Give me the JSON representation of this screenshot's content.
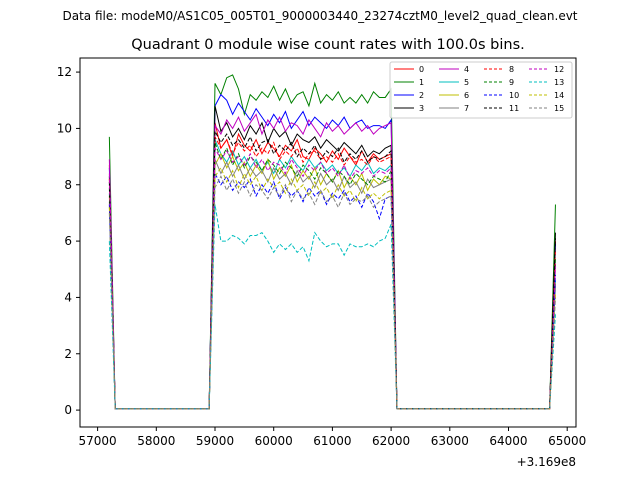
{
  "figure": {
    "supertitle": "Data file: modeM0/AS1C05_005T01_9000003440_23274cztM0_level2_quad_clean.evt"
  },
  "chart_data": {
    "type": "line",
    "title": "Quadrant 0 module wise count rates with 100.0s bins.",
    "xlabel": "",
    "ylabel": "",
    "x_offset_label": "+3.169e8",
    "xlim": [
      56700,
      65150
    ],
    "ylim": [
      -0.6,
      12.5
    ],
    "xticks": [
      57000,
      58000,
      59000,
      60000,
      61000,
      62000,
      63000,
      64000,
      65000
    ],
    "yticks": [
      0,
      2,
      4,
      6,
      8,
      10,
      12
    ],
    "legend": {
      "placement": "top-right",
      "columns": 4
    },
    "grid": false,
    "segments": [
      [
        57200,
        57300
      ],
      [
        58800,
        62200
      ],
      [
        64700,
        64800
      ]
    ],
    "series": [
      {
        "name": "0",
        "color": "#ff0000",
        "dash": "solid",
        "values": [
          8.7,
          0.05,
          0.05,
          0.05,
          10.2,
          9.3,
          9.6,
          9.0,
          9.8,
          9.4,
          9.2,
          9.6,
          9.1,
          9.5,
          9.3,
          9.0,
          9.4,
          9.2,
          9.6,
          9.0,
          8.9,
          9.3,
          9.1,
          8.8,
          9.2,
          8.9,
          9.3,
          9.0,
          8.7,
          9.2,
          8.8,
          9.1,
          8.9,
          9.0,
          9.1,
          0.05,
          0.05,
          0.05,
          6.0
        ]
      },
      {
        "name": "1",
        "color": "#008000",
        "dash": "solid",
        "values": [
          9.7,
          0.05,
          0.05,
          0.05,
          11.6,
          11.2,
          11.8,
          11.9,
          11.4,
          10.5,
          11.2,
          11.0,
          11.3,
          11.1,
          11.5,
          11.0,
          11.4,
          10.9,
          11.2,
          11.3,
          10.8,
          11.6,
          10.9,
          11.2,
          11.0,
          11.3,
          10.9,
          11.1,
          10.9,
          11.2,
          10.9,
          11.3,
          11.1,
          11.1,
          11.4,
          0.05,
          0.05,
          0.05,
          7.3
        ]
      },
      {
        "name": "2",
        "color": "#0000ff",
        "dash": "solid",
        "values": [
          8.6,
          0.05,
          0.05,
          0.05,
          10.8,
          11.2,
          11.0,
          10.5,
          10.9,
          10.6,
          10.3,
          10.7,
          10.4,
          10.1,
          10.5,
          10.2,
          10.6,
          10.0,
          10.3,
          10.6,
          10.1,
          10.4,
          10.2,
          10.0,
          10.3,
          10.1,
          10.4,
          10.0,
          10.2,
          10.3,
          10.0,
          10.1,
          10.1,
          10.0,
          10.3,
          0.05,
          0.05,
          0.05,
          5.9
        ]
      },
      {
        "name": "3",
        "color": "#000000",
        "dash": "solid",
        "values": [
          8.3,
          0.05,
          0.05,
          0.05,
          10.8,
          9.9,
          10.2,
          9.7,
          10.0,
          9.6,
          10.1,
          9.8,
          10.2,
          9.5,
          10.0,
          9.7,
          9.9,
          9.4,
          9.8,
          9.6,
          9.5,
          9.7,
          9.3,
          9.6,
          9.4,
          9.2,
          9.5,
          9.3,
          9.1,
          9.4,
          9.0,
          9.2,
          9.1,
          9.3,
          9.4,
          0.05,
          0.05,
          0.05,
          6.3
        ]
      },
      {
        "name": "4",
        "color": "#bf00bf",
        "dash": "solid",
        "values": [
          8.9,
          0.05,
          0.05,
          0.05,
          10.1,
          9.8,
          10.3,
          10.0,
          10.4,
          9.9,
          10.2,
          10.5,
          9.8,
          10.3,
          10.0,
          10.4,
          9.9,
          10.2,
          10.1,
          9.8,
          10.3,
          10.0,
          9.7,
          10.2,
          9.9,
          10.1,
          9.8,
          10.0,
          10.2,
          9.9,
          10.1,
          9.8,
          10.0,
          10.1,
          10.2,
          0.05,
          0.05,
          0.05,
          5.2
        ]
      },
      {
        "name": "5",
        "color": "#00bfbf",
        "dash": "solid",
        "values": [
          7.7,
          0.05,
          0.05,
          0.05,
          9.6,
          9.1,
          8.8,
          9.2,
          8.7,
          9.0,
          8.6,
          8.9,
          8.5,
          8.8,
          8.4,
          8.9,
          8.6,
          9.0,
          8.7,
          8.5,
          8.9,
          8.6,
          8.8,
          8.5,
          8.7,
          8.4,
          8.6,
          8.3,
          8.7,
          8.5,
          8.8,
          8.4,
          8.6,
          8.5,
          8.7,
          0.05,
          0.05,
          0.05,
          4.6
        ]
      },
      {
        "name": "6",
        "color": "#bfbf00",
        "dash": "solid",
        "values": [
          7.6,
          0.05,
          0.05,
          0.05,
          8.7,
          9.1,
          8.6,
          9.0,
          8.5,
          8.8,
          8.3,
          8.7,
          8.4,
          8.9,
          8.2,
          8.6,
          8.3,
          8.7,
          8.1,
          8.5,
          8.2,
          8.6,
          8.0,
          8.4,
          8.1,
          8.5,
          7.9,
          8.3,
          8.0,
          8.4,
          7.8,
          8.2,
          8.0,
          8.3,
          8.2,
          0.05,
          0.05,
          0.05,
          4.5
        ]
      },
      {
        "name": "7",
        "color": "#808080",
        "dash": "solid",
        "values": [
          7.4,
          0.05,
          0.05,
          0.05,
          8.9,
          8.4,
          8.8,
          8.3,
          8.7,
          8.2,
          8.6,
          8.3,
          8.5,
          8.1,
          8.6,
          8.2,
          8.4,
          8.0,
          8.5,
          8.1,
          8.3,
          7.9,
          8.4,
          8.0,
          8.2,
          7.8,
          8.3,
          7.9,
          8.1,
          7.7,
          8.2,
          7.9,
          8.0,
          8.1,
          8.2,
          0.05,
          0.05,
          0.05,
          4.4
        ]
      },
      {
        "name": "8",
        "color": "#ff0000",
        "dash": "dashed",
        "values": [
          8.2,
          0.05,
          0.05,
          0.05,
          9.7,
          9.3,
          9.6,
          9.1,
          9.5,
          9.2,
          9.4,
          9.0,
          9.3,
          9.1,
          9.5,
          8.9,
          9.2,
          9.0,
          9.3,
          8.8,
          9.1,
          9.2,
          8.9,
          9.0,
          8.8,
          9.1,
          8.7,
          9.0,
          8.8,
          8.9,
          8.7,
          9.0,
          8.8,
          8.9,
          9.0,
          0.05,
          0.05,
          0.05,
          5.7
        ]
      },
      {
        "name": "9",
        "color": "#008000",
        "dash": "dashed",
        "values": [
          7.9,
          0.05,
          0.05,
          0.05,
          9.5,
          8.9,
          9.3,
          8.7,
          9.1,
          8.6,
          9.0,
          8.8,
          8.5,
          8.9,
          8.7,
          8.4,
          8.8,
          8.6,
          8.3,
          8.7,
          8.5,
          8.2,
          8.6,
          8.4,
          8.1,
          8.5,
          8.3,
          8.0,
          8.4,
          8.2,
          8.0,
          8.3,
          8.2,
          8.1,
          8.5,
          0.05,
          0.05,
          0.05,
          5.4
        ]
      },
      {
        "name": "10",
        "color": "#0000ff",
        "dash": "dashed",
        "values": [
          7.3,
          0.05,
          0.05,
          0.05,
          8.4,
          8.0,
          8.3,
          7.8,
          8.1,
          7.9,
          8.2,
          7.6,
          8.0,
          7.7,
          8.1,
          7.5,
          7.9,
          7.6,
          7.8,
          7.4,
          7.9,
          7.6,
          7.8,
          7.3,
          7.7,
          7.5,
          7.8,
          7.4,
          7.6,
          7.2,
          7.7,
          7.4,
          6.8,
          7.5,
          7.6,
          0.05,
          0.05,
          0.05,
          4.8
        ]
      },
      {
        "name": "11",
        "color": "#000000",
        "dash": "dashed",
        "values": [
          8.1,
          0.05,
          0.05,
          0.05,
          9.9,
          9.5,
          9.8,
          9.4,
          9.6,
          9.3,
          9.7,
          9.2,
          9.5,
          9.6,
          9.1,
          9.4,
          9.2,
          9.5,
          9.0,
          9.3,
          9.1,
          9.4,
          8.9,
          9.2,
          9.0,
          9.3,
          8.8,
          9.1,
          8.9,
          9.2,
          8.8,
          9.0,
          8.9,
          9.0,
          9.2,
          0.05,
          0.05,
          0.05,
          6.1
        ]
      },
      {
        "name": "12",
        "color": "#bf00bf",
        "dash": "dashed",
        "values": [
          8.4,
          0.05,
          0.05,
          0.05,
          9.3,
          8.9,
          9.2,
          8.8,
          9.0,
          8.7,
          9.1,
          8.6,
          8.9,
          8.5,
          8.8,
          8.7,
          8.4,
          8.9,
          8.6,
          8.3,
          8.7,
          8.5,
          8.8,
          8.4,
          8.6,
          8.3,
          8.7,
          8.2,
          8.5,
          8.4,
          8.6,
          8.3,
          8.5,
          8.4,
          8.6,
          0.05,
          0.05,
          0.05,
          5.1
        ]
      },
      {
        "name": "13",
        "color": "#00bfbf",
        "dash": "dashed",
        "values": [
          6.0,
          0.05,
          0.05,
          0.05,
          7.3,
          6.0,
          6.0,
          6.2,
          6.1,
          5.9,
          6.2,
          6.2,
          6.3,
          6.0,
          5.6,
          5.9,
          5.7,
          5.9,
          5.6,
          5.8,
          5.3,
          6.3,
          6.0,
          5.8,
          5.9,
          5.9,
          5.5,
          5.9,
          5.8,
          5.8,
          5.9,
          5.8,
          6.0,
          6.1,
          6.6,
          0.05,
          0.05,
          0.05,
          3.4
        ]
      },
      {
        "name": "14",
        "color": "#bfbf00",
        "dash": "dashed",
        "values": [
          7.2,
          0.05,
          0.05,
          0.05,
          8.3,
          8.6,
          8.1,
          8.5,
          7.9,
          8.4,
          8.0,
          8.3,
          7.8,
          8.2,
          7.9,
          8.1,
          7.7,
          8.2,
          7.8,
          8.0,
          7.6,
          8.1,
          7.7,
          7.9,
          7.5,
          8.0,
          7.6,
          7.8,
          7.4,
          7.9,
          7.5,
          7.7,
          7.5,
          7.7,
          7.8,
          0.05,
          0.05,
          0.05,
          4.1
        ]
      },
      {
        "name": "15",
        "color": "#808080",
        "dash": "dashed",
        "values": [
          7.0,
          0.05,
          0.05,
          0.05,
          7.9,
          8.3,
          7.8,
          8.2,
          7.7,
          8.1,
          7.6,
          8.0,
          7.8,
          7.5,
          7.9,
          7.6,
          8.0,
          7.4,
          7.8,
          7.5,
          7.7,
          7.3,
          7.8,
          7.4,
          7.6,
          7.2,
          7.7,
          7.3,
          7.5,
          7.4,
          7.6,
          7.2,
          7.4,
          7.5,
          7.6,
          0.05,
          0.05,
          0.05,
          4.0
        ]
      }
    ]
  }
}
